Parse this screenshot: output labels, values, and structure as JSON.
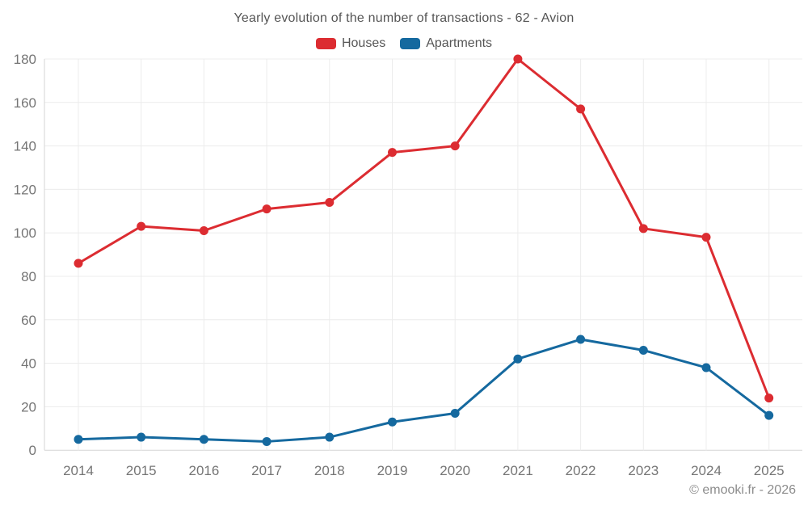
{
  "chart_data": {
    "type": "line",
    "title": "Yearly evolution of the number of transactions - 62 - Avion",
    "categories": [
      "2014",
      "2015",
      "2016",
      "2017",
      "2018",
      "2019",
      "2020",
      "2021",
      "2022",
      "2023",
      "2024",
      "2025"
    ],
    "series": [
      {
        "name": "Houses",
        "color": "#dc2c31",
        "values": [
          86,
          103,
          101,
          111,
          114,
          137,
          140,
          180,
          157,
          102,
          98,
          24
        ]
      },
      {
        "name": "Apartments",
        "color": "#15699f",
        "values": [
          5,
          6,
          5,
          4,
          6,
          13,
          17,
          42,
          51,
          46,
          38,
          16
        ]
      }
    ],
    "xlabel": "",
    "ylabel": "",
    "ylim": [
      0,
      180
    ],
    "yticks": [
      0,
      20,
      40,
      60,
      80,
      100,
      120,
      140,
      160,
      180
    ],
    "grid": true,
    "legend_position": "top"
  },
  "footer": {
    "copyright": "© emooki.fr - 2026"
  },
  "colors": {
    "grid_line": "#ececec",
    "axis_line": "#d6d6d6",
    "tick_text": "#757575",
    "title_text": "#555555",
    "footer_text": "#8c8c8c"
  }
}
